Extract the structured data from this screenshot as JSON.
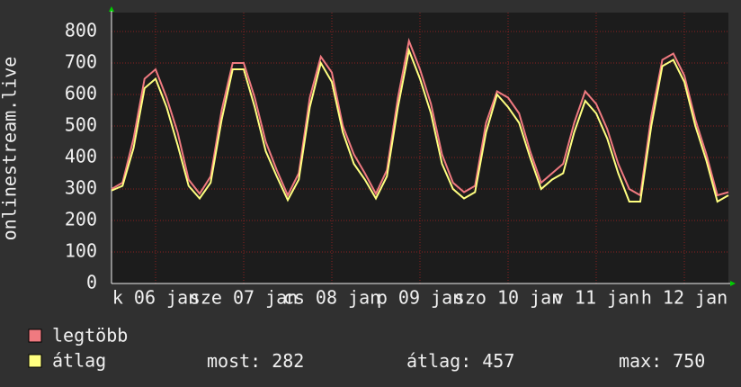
{
  "chart_data": {
    "type": "line",
    "y_label": "onlinestream.live",
    "x": [
      0,
      3,
      6,
      9,
      12,
      15,
      18,
      21,
      24,
      27,
      30,
      33,
      36,
      39,
      42,
      45,
      48,
      51,
      54,
      57,
      60,
      63,
      66,
      69,
      72,
      75,
      78,
      81,
      84,
      87,
      90,
      93,
      96,
      99,
      102,
      105,
      108,
      111,
      114,
      117,
      120,
      123,
      126,
      129,
      132,
      135,
      138,
      141,
      144,
      147,
      150,
      153,
      156,
      159,
      162,
      165,
      168
    ],
    "xlim": [
      0,
      168
    ],
    "xticks": [
      {
        "value": 12,
        "label": "k 06 jan"
      },
      {
        "value": 36,
        "label": "sze 07 jan"
      },
      {
        "value": 60,
        "label": "cs 08 jan"
      },
      {
        "value": 84,
        "label": "p 09 jan"
      },
      {
        "value": 108,
        "label": "szo 10 jan"
      },
      {
        "value": 132,
        "label": "v 11 jan"
      },
      {
        "value": 156,
        "label": "h 12 jan"
      }
    ],
    "ylim": [
      0,
      800
    ],
    "yticks": [
      0,
      100,
      200,
      300,
      400,
      500,
      600,
      700,
      800
    ],
    "grid": true,
    "series": [
      {
        "name": "legtöbb",
        "color": "#f07a80",
        "values": [
          300,
          320,
          460,
          650,
          680,
          590,
          480,
          330,
          285,
          340,
          550,
          700,
          700,
          590,
          450,
          360,
          280,
          350,
          590,
          720,
          670,
          500,
          410,
          350,
          285,
          360,
          590,
          770,
          680,
          570,
          410,
          320,
          290,
          310,
          510,
          610,
          590,
          540,
          420,
          320,
          350,
          380,
          510,
          610,
          570,
          490,
          380,
          300,
          280,
          530,
          710,
          730,
          660,
          520,
          410,
          280,
          290
        ]
      },
      {
        "name": "átlag",
        "color": "#ffff80",
        "values": [
          295,
          310,
          430,
          620,
          650,
          560,
          440,
          310,
          270,
          320,
          520,
          680,
          680,
          560,
          420,
          340,
          265,
          330,
          560,
          700,
          640,
          480,
          380,
          330,
          270,
          340,
          560,
          740,
          650,
          540,
          380,
          300,
          270,
          290,
          480,
          600,
          560,
          510,
          400,
          300,
          330,
          350,
          480,
          580,
          540,
          460,
          350,
          260,
          260,
          500,
          690,
          710,
          640,
          500,
          390,
          260,
          280
        ]
      }
    ],
    "stats": [
      {
        "label": "most:",
        "value": 282
      },
      {
        "label": "átlag:",
        "value": 457
      },
      {
        "label": "max:",
        "value": 750
      }
    ]
  }
}
